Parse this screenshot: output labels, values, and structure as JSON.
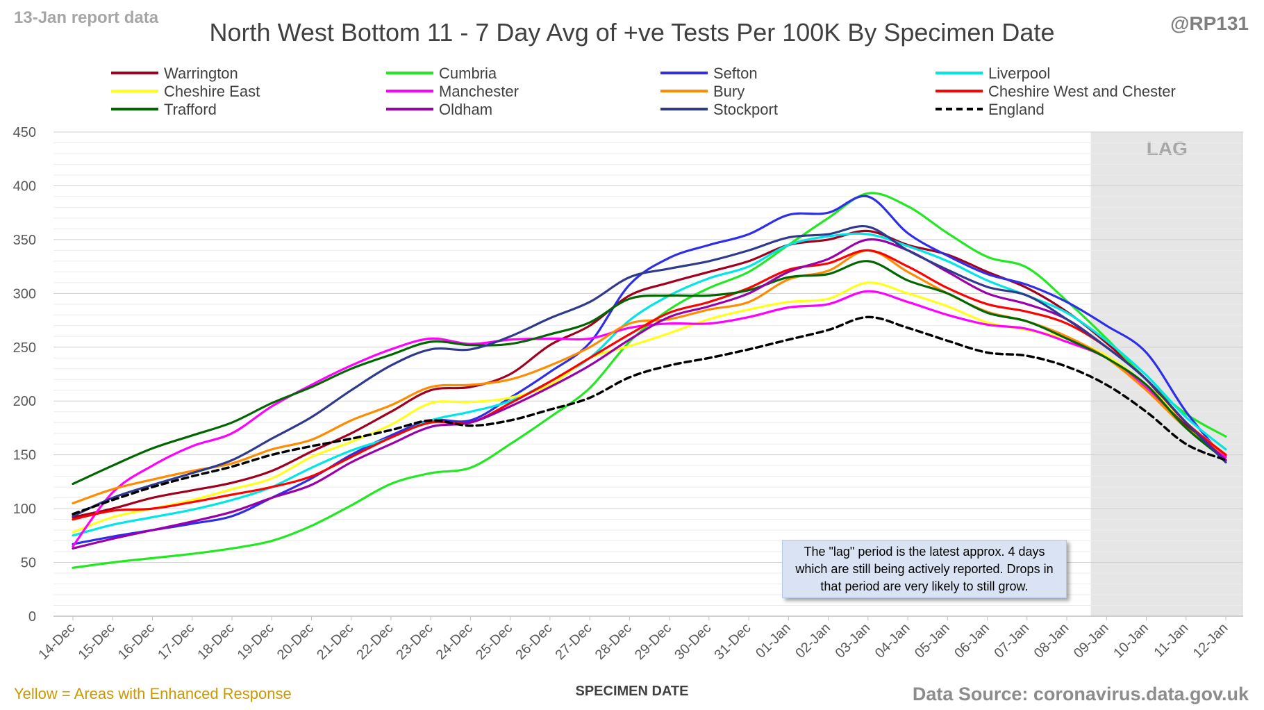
{
  "header": {
    "report_label": "13-Jan report data",
    "handle": "@RP131"
  },
  "footer": {
    "legend_note": "Yellow = Areas with Enhanced Response",
    "source": "Data Source: coronavirus.data.gov.uk"
  },
  "note_text": "The \"lag\" period is the latest approx. 4 days which are still being actively reported. Drops in that period are very likely to still grow.",
  "chart_data": {
    "type": "line",
    "title": "North West Bottom 11 - 7 Day Avg of +ve Tests Per 100K By Specimen Date",
    "xlabel": "SPECIMEN DATE",
    "ylabel": "",
    "ylim": [
      0,
      450
    ],
    "yticks": [
      0,
      50,
      100,
      150,
      200,
      250,
      300,
      350,
      400,
      450
    ],
    "grid": true,
    "legend_position": "top",
    "lag_label": "LAG",
    "lag_start": "08-Jan",
    "categories": [
      "14-Dec",
      "15-Dec",
      "16-Dec",
      "17-Dec",
      "18-Dec",
      "19-Dec",
      "20-Dec",
      "21-Dec",
      "22-Dec",
      "23-Dec",
      "24-Dec",
      "25-Dec",
      "26-Dec",
      "27-Dec",
      "28-Dec",
      "29-Dec",
      "30-Dec",
      "31-Dec",
      "01-Jan",
      "02-Jan",
      "03-Jan",
      "04-Jan",
      "05-Jan",
      "06-Jan",
      "07-Jan",
      "08-Jan",
      "09-Jan",
      "10-Jan",
      "11-Jan",
      "12-Jan"
    ],
    "series": [
      {
        "name": "Warrington",
        "color": "#a0001e",
        "dash": false,
        "values": [
          92,
          100,
          110,
          117,
          124,
          135,
          153,
          170,
          190,
          210,
          213,
          225,
          252,
          270,
          298,
          310,
          320,
          330,
          345,
          350,
          358,
          345,
          336,
          320,
          305,
          283,
          254,
          220,
          178,
          148
        ]
      },
      {
        "name": "Cumbria",
        "color": "#22e822",
        "dash": false,
        "values": [
          45,
          50,
          54,
          58,
          63,
          70,
          84,
          103,
          123,
          133,
          138,
          160,
          185,
          212,
          255,
          285,
          305,
          320,
          345,
          370,
          393,
          381,
          356,
          334,
          324,
          293,
          258,
          220,
          188,
          167
        ]
      },
      {
        "name": "Sefton",
        "color": "#2e2ee8",
        "dash": false,
        "values": [
          67,
          74,
          80,
          86,
          93,
          110,
          128,
          150,
          168,
          182,
          182,
          203,
          227,
          254,
          308,
          333,
          345,
          355,
          373,
          375,
          390,
          356,
          335,
          318,
          308,
          292,
          270,
          245,
          190,
          145
        ]
      },
      {
        "name": "Liverpool",
        "color": "#00e5e5",
        "dash": false,
        "values": [
          75,
          85,
          92,
          99,
          108,
          120,
          138,
          154,
          166,
          182,
          190,
          200,
          218,
          240,
          275,
          298,
          314,
          325,
          345,
          353,
          355,
          344,
          330,
          312,
          298,
          282,
          256,
          224,
          185,
          155
        ]
      },
      {
        "name": "Cheshire East",
        "color": "#ffff1a",
        "dash": false,
        "values": [
          78,
          92,
          100,
          108,
          118,
          128,
          148,
          162,
          178,
          198,
          199,
          203,
          215,
          240,
          251,
          263,
          276,
          285,
          292,
          295,
          310,
          300,
          288,
          273,
          266,
          258,
          242,
          215,
          180,
          150
        ]
      },
      {
        "name": "Manchester",
        "color": "#ff00ff",
        "dash": false,
        "values": [
          65,
          115,
          140,
          158,
          170,
          195,
          215,
          233,
          248,
          258,
          253,
          257,
          258,
          258,
          268,
          272,
          272,
          278,
          287,
          290,
          302,
          292,
          280,
          271,
          267,
          255,
          240,
          212,
          175,
          148
        ]
      },
      {
        "name": "Bury",
        "color": "#ff8c00",
        "dash": false,
        "values": [
          105,
          118,
          127,
          135,
          142,
          155,
          164,
          182,
          196,
          213,
          215,
          220,
          233,
          250,
          272,
          276,
          285,
          292,
          313,
          321,
          340,
          320,
          300,
          283,
          274,
          260,
          240,
          210,
          175,
          150
        ]
      },
      {
        "name": "Cheshire West and Chester",
        "color": "#ff0000",
        "dash": false,
        "values": [
          90,
          98,
          100,
          106,
          113,
          120,
          130,
          148,
          166,
          180,
          180,
          198,
          218,
          240,
          262,
          282,
          292,
          305,
          322,
          328,
          340,
          325,
          305,
          290,
          283,
          272,
          250,
          220,
          180,
          150
        ]
      },
      {
        "name": "Trafford",
        "color": "#006600",
        "dash": false,
        "values": [
          123,
          140,
          156,
          168,
          180,
          198,
          213,
          230,
          243,
          255,
          252,
          253,
          262,
          273,
          295,
          298,
          298,
          303,
          315,
          318,
          330,
          312,
          300,
          282,
          274,
          258,
          240,
          215,
          175,
          145
        ]
      },
      {
        "name": "Oldham",
        "color": "#9900aa",
        "dash": false,
        "values": [
          63,
          72,
          80,
          88,
          97,
          110,
          122,
          143,
          160,
          176,
          180,
          195,
          213,
          233,
          257,
          278,
          288,
          300,
          320,
          332,
          350,
          340,
          320,
          300,
          290,
          276,
          250,
          220,
          180,
          145
        ]
      },
      {
        "name": "Stockport",
        "color": "#2e3a8c",
        "dash": false,
        "values": [
          93,
          110,
          122,
          133,
          145,
          165,
          185,
          210,
          233,
          248,
          248,
          260,
          277,
          292,
          315,
          323,
          330,
          340,
          352,
          355,
          362,
          340,
          322,
          306,
          298,
          276,
          250,
          220,
          180,
          143
        ]
      },
      {
        "name": "England",
        "color": "#000000",
        "dash": true,
        "values": [
          95,
          108,
          120,
          130,
          139,
          150,
          158,
          165,
          173,
          182,
          177,
          182,
          192,
          203,
          222,
          233,
          240,
          248,
          257,
          266,
          278,
          268,
          256,
          245,
          242,
          232,
          215,
          190,
          160,
          145
        ]
      }
    ]
  }
}
